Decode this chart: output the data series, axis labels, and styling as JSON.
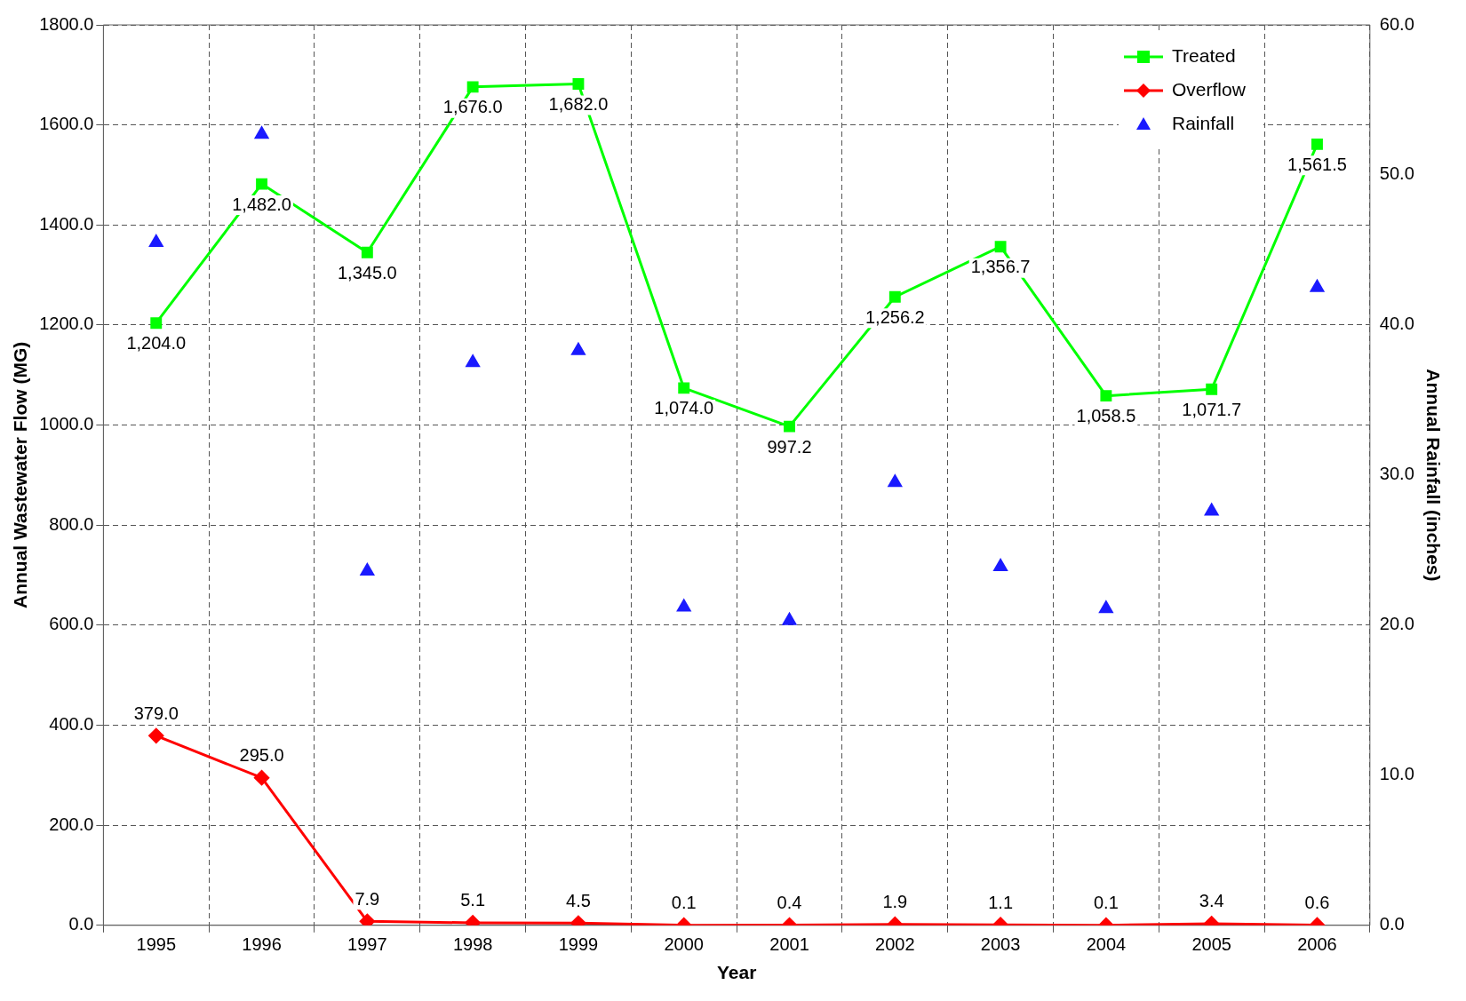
{
  "chart_data": {
    "type": "line",
    "xlabel": "Year",
    "ylabel": "Annual Wastewater Flow (MG)",
    "y2label": "Annual Rainfall (inches)",
    "categories": [
      "1995",
      "1996",
      "1997",
      "1998",
      "1999",
      "2000",
      "2001",
      "2002",
      "2003",
      "2004",
      "2005",
      "2006"
    ],
    "series": [
      {
        "name": "Treated",
        "type": "line",
        "color": "#00ff00",
        "marker": "square",
        "values": [
          1204,
          1482,
          1345,
          1676,
          1682,
          1074,
          997.2,
          1256.2,
          1356.7,
          1058.5,
          1071.7,
          1561.5
        ],
        "value_labels": [
          "1,204.0",
          "1,482.0",
          "1,345.0",
          "1,676.0",
          "1,682.0",
          "1,074.0",
          "997.2",
          "1,256.2",
          "1,356.7",
          "1,058.5",
          "1,071.7",
          "1,561.5"
        ]
      },
      {
        "name": "Overflow",
        "type": "line",
        "color": "#ff0000",
        "marker": "diamond",
        "values": [
          379,
          295,
          7.9,
          5.1,
          4.5,
          0.1,
          0.4,
          1.9,
          1.1,
          0.1,
          3.4,
          0.6
        ],
        "value_labels": [
          "379.0",
          "295.0",
          "7.9",
          "5.1",
          "4.5",
          "0.1",
          "0.4",
          "1.9",
          "1.1",
          "0.1",
          "3.4",
          "0.6"
        ]
      },
      {
        "name": "Rainfall",
        "type": "scatter",
        "axis": "y2",
        "color": "#1a1aff",
        "marker": "triangle",
        "values": [
          45.5,
          52.7,
          23.6,
          37.5,
          38.3,
          21.2,
          20.3,
          29.5,
          23.9,
          21.1,
          27.6,
          42.5
        ]
      }
    ],
    "ylim": [
      0,
      1800
    ],
    "yticks": [
      {
        "value": 0,
        "label": "0.0"
      },
      {
        "value": 200,
        "label": "200.0"
      },
      {
        "value": 400,
        "label": "400.0"
      },
      {
        "value": 600,
        "label": "600.0"
      },
      {
        "value": 800,
        "label": "800.0"
      },
      {
        "value": 1000,
        "label": "1000.0"
      },
      {
        "value": 1200,
        "label": "1200.0"
      },
      {
        "value": 1400,
        "label": "1400.0"
      },
      {
        "value": 1600,
        "label": "1600.0"
      },
      {
        "value": 1800,
        "label": "1800.0"
      }
    ],
    "y2lim": [
      0,
      60
    ],
    "y2ticks": [
      {
        "value": 0,
        "label": "0.0"
      },
      {
        "value": 10,
        "label": "10.0"
      },
      {
        "value": 20,
        "label": "20.0"
      },
      {
        "value": 30,
        "label": "30.0"
      },
      {
        "value": 40,
        "label": "40.0"
      },
      {
        "value": 50,
        "label": "50.0"
      },
      {
        "value": 60,
        "label": "60.0"
      }
    ],
    "grid": true,
    "legend": "top right"
  }
}
